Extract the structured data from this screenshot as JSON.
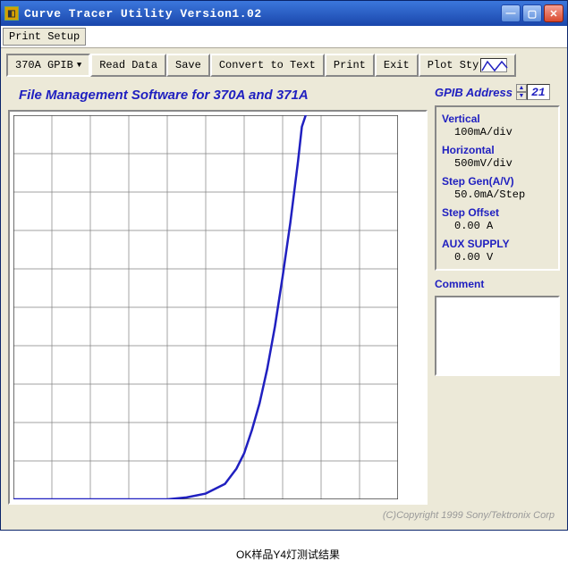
{
  "window": {
    "title": "Curve Tracer Utility Version1.02"
  },
  "menubar": {
    "print_setup": "Print Setup"
  },
  "toolbar": {
    "device_select": "370A GPIB",
    "read_data": "Read Data",
    "save": "Save",
    "convert": "Convert to Text",
    "print": "Print",
    "exit": "Exit",
    "plot_style": "Plot Sty"
  },
  "chart": {
    "title": "File Management Software for 370A and 371A",
    "grid": {
      "cols": 10,
      "rows": 10,
      "color": "#808080",
      "bg": "#ffffff",
      "border": "#808080"
    },
    "curve": {
      "color": "#2020c0",
      "width": 2.5,
      "points": [
        [
          0.0,
          0.0
        ],
        [
          0.4,
          0.0
        ],
        [
          0.45,
          0.005
        ],
        [
          0.5,
          0.015
        ],
        [
          0.55,
          0.04
        ],
        [
          0.58,
          0.08
        ],
        [
          0.6,
          0.12
        ],
        [
          0.62,
          0.18
        ],
        [
          0.64,
          0.25
        ],
        [
          0.66,
          0.34
        ],
        [
          0.68,
          0.45
        ],
        [
          0.7,
          0.58
        ],
        [
          0.72,
          0.72
        ],
        [
          0.74,
          0.88
        ],
        [
          0.75,
          0.97
        ],
        [
          0.76,
          1.0
        ]
      ]
    }
  },
  "gpib": {
    "label": "GPIB Address",
    "value": "21"
  },
  "params": {
    "vertical": {
      "label": "Vertical",
      "value": "100mA/div"
    },
    "horizontal": {
      "label": "Horizontal",
      "value": "500mV/div"
    },
    "stepgen": {
      "label": "Step Gen(A/V)",
      "value": "50.0mA/Step"
    },
    "stepoffset": {
      "label": "Step Offset",
      "value": "0.00 A"
    },
    "aux": {
      "label": "AUX SUPPLY",
      "value": "0.00 V"
    }
  },
  "comment": {
    "label": "Comment",
    "value": ""
  },
  "copyright": "(C)Copyright 1999 Sony/Tektronix Corp",
  "caption": "OK样品Y4灯测试结果"
}
